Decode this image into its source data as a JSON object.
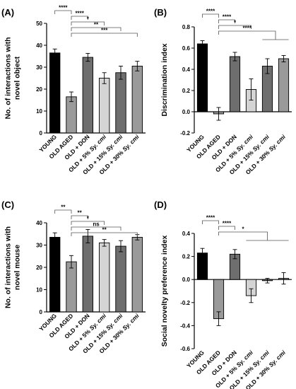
{
  "colors": {
    "fills": [
      "#000000",
      "#9a9a9a",
      "#6e6e6e",
      "#d4d4d4",
      "#6e6e6e",
      "#9a9a9a"
    ]
  },
  "chart_data": [
    {
      "panel": "(A)",
      "type": "bar",
      "ylabel_lines": [
        "No. of interactions with",
        "novel object"
      ],
      "categories": [
        "YOUNG",
        "OLD AGED",
        "OLD + DON",
        "OLD + 5% Sy. cmi",
        "OLD + 15% Sy. cmi",
        "OLD + 30% Sy. cmi"
      ],
      "values": [
        36.5,
        16.5,
        34.5,
        25,
        27.5,
        30.5
      ],
      "errors": [
        1.8,
        2.2,
        1.8,
        2.5,
        3,
        2.2
      ],
      "ylim": [
        0,
        50
      ],
      "yticks": [
        0,
        10,
        20,
        30,
        40,
        50
      ],
      "significance": [
        {
          "from": 0,
          "to": 1,
          "label": "****",
          "level": 0
        },
        {
          "from": 1,
          "to": 2,
          "label": "****",
          "level": 1
        },
        {
          "from": 1,
          "to": 3,
          "label": "*",
          "level": 2
        },
        {
          "from": 1,
          "to": 4,
          "label": "**",
          "level": 3
        },
        {
          "from": 1,
          "to": 5,
          "label": "***",
          "level": 4
        }
      ]
    },
    {
      "panel": "(B)",
      "type": "bar",
      "ylabel_lines": [
        "Discrimination index"
      ],
      "categories": [
        "YOUNG",
        "OLD AGED",
        "OLD + DON",
        "OLD + 5% Sy. cmi",
        "OLD + 15% Sy. cmi",
        "OLD + 30% Sy. cmi"
      ],
      "values": [
        0.64,
        -0.02,
        0.52,
        0.21,
        0.43,
        0.5
      ],
      "errors": [
        0.03,
        0.06,
        0.04,
        0.1,
        0.07,
        0.03
      ],
      "ylim": [
        -0.2,
        0.8
      ],
      "yticks": [
        -0.2,
        0.0,
        0.2,
        0.4,
        0.6,
        0.8
      ],
      "significance": [
        {
          "from": 0,
          "to": 1,
          "label": "****",
          "level": 0
        },
        {
          "from": 1,
          "to": 2,
          "label": "****",
          "level": 1
        },
        {
          "from": 1,
          "to": 3,
          "label": "*",
          "level": 2
        },
        {
          "from": 1,
          "to": 4.5,
          "label": "****",
          "level": 3,
          "group": [
            4,
            5
          ]
        }
      ]
    },
    {
      "panel": "(C)",
      "type": "bar",
      "ylabel_lines": [
        "No. of interactions with",
        "novel mouse"
      ],
      "categories": [
        "YOUNG",
        "OLD AGED",
        "OLD + DON",
        "OLD + 5% Sy. cmi",
        "OLD + 15% Sy. cmi",
        "OLD + 30% Sy. cmi"
      ],
      "values": [
        33.5,
        22.5,
        34,
        31,
        29.5,
        33.5
      ],
      "errors": [
        2,
        2.8,
        3,
        1.5,
        2.5,
        1.2
      ],
      "ylim": [
        0,
        40
      ],
      "yticks": [
        0,
        10,
        20,
        30,
        40
      ],
      "significance": [
        {
          "from": 0,
          "to": 1,
          "label": "**",
          "level": 0
        },
        {
          "from": 1,
          "to": 2,
          "label": "**",
          "level": 1
        },
        {
          "from": 1,
          "to": 3,
          "label": "*",
          "level": 2
        },
        {
          "from": 1,
          "to": 4,
          "label": "ns",
          "level": 3
        },
        {
          "from": 1,
          "to": 5,
          "label": "**",
          "level": 4
        }
      ]
    },
    {
      "panel": "(D)",
      "type": "bar",
      "ylabel_lines": [
        "Social novelty preference index"
      ],
      "categories": [
        "YOUNG",
        "OLD AGED",
        "OLD + DON",
        "OLD + 5% Sy. cmi",
        "OLD + 15% Sy. cmi",
        "OLD + 30% Sy. cmi"
      ],
      "values": [
        0.23,
        -0.34,
        0.22,
        -0.14,
        -0.01,
        0.01
      ],
      "errors": [
        0.04,
        0.06,
        0.04,
        0.06,
        0.02,
        0.05
      ],
      "ylim": [
        -0.6,
        0.4
      ],
      "yticks": [
        -0.6,
        -0.4,
        -0.2,
        0.0,
        0.2,
        0.4
      ],
      "significance": [
        {
          "from": 0,
          "to": 1,
          "label": "****",
          "level": 0
        },
        {
          "from": 1,
          "to": 2,
          "label": "****",
          "level": 1
        },
        {
          "from": 1,
          "to": 4,
          "label": "*",
          "level": 2,
          "group": [
            3,
            5
          ]
        }
      ]
    }
  ]
}
